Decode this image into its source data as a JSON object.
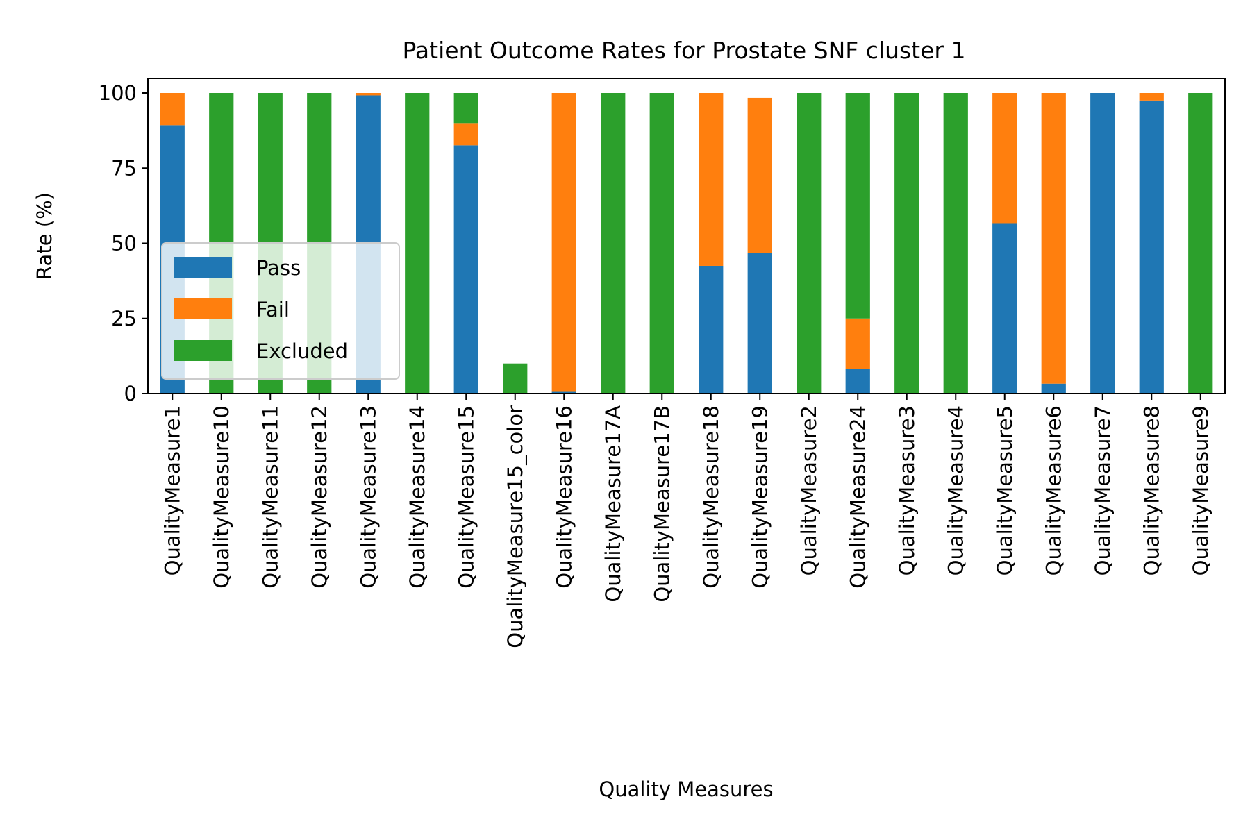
{
  "chart_data": {
    "type": "bar",
    "stacked": true,
    "title": "Patient Outcome Rates for Prostate SNF cluster 1",
    "xlabel": "Quality Measures",
    "ylabel": "Rate (%)",
    "ylim": [
      0,
      105
    ],
    "yticks": [
      0,
      25,
      50,
      75,
      100
    ],
    "grid": false,
    "legend_position": "center-left",
    "categories": [
      "QualityMeasure1",
      "QualityMeasure10",
      "QualityMeasure11",
      "QualityMeasure12",
      "QualityMeasure13",
      "QualityMeasure14",
      "QualityMeasure15",
      "QualityMeasure15_color",
      "QualityMeasure16",
      "QualityMeasure17A",
      "QualityMeasure17B",
      "QualityMeasure18",
      "QualityMeasure19",
      "QualityMeasure2",
      "QualityMeasure24",
      "QualityMeasure3",
      "QualityMeasure4",
      "QualityMeasure5",
      "QualityMeasure6",
      "QualityMeasure7",
      "QualityMeasure8",
      "QualityMeasure9"
    ],
    "series": [
      {
        "name": "Pass",
        "color": "#1f77b4",
        "values": [
          89.3,
          0,
          0,
          0,
          99.2,
          0,
          82.6,
          0,
          0.8,
          0,
          0,
          42.5,
          46.8,
          0,
          8.3,
          0,
          0,
          56.7,
          3.3,
          100,
          97.5,
          0
        ]
      },
      {
        "name": "Fail",
        "color": "#ff7f0e",
        "values": [
          10.7,
          0,
          0,
          0,
          0.8,
          0,
          7.4,
          0,
          99.2,
          0,
          0,
          57.5,
          51.6,
          0,
          16.7,
          0,
          0,
          43.3,
          96.7,
          0,
          2.5,
          0
        ]
      },
      {
        "name": "Excluded",
        "color": "#2ca02c",
        "values": [
          0,
          100,
          100,
          100,
          0,
          100,
          10,
          10,
          0,
          100,
          100,
          0,
          0,
          100,
          75,
          100,
          100,
          0,
          0,
          0,
          0,
          100
        ]
      }
    ]
  }
}
